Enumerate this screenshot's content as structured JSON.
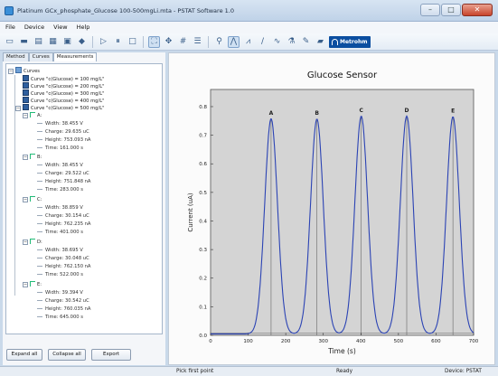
{
  "window": {
    "title": "Platinum GCx_phosphate_Glucose 100-500mgLi.mta - PSTAT Software 1.0"
  },
  "menu": [
    "File",
    "Device",
    "View",
    "Help"
  ],
  "toolbar": {
    "brand_label": "Metrohm"
  },
  "tabs": [
    "Method",
    "Curves",
    "Measurements"
  ],
  "tree": {
    "root": "Curves",
    "curves": [
      "Curve \"c(Glucose) = 100 mg/L\"",
      "Curve \"c(Glucose) = 200 mg/L\"",
      "Curve \"c(Glucose) = 300 mg/L\"",
      "Curve \"c(Glucose) = 400 mg/L\"",
      "Curve \"c(Glucose) = 500 mg/L\""
    ],
    "peaks": [
      {
        "name": "A:",
        "width": "Width: 38.455 V",
        "charge": "Charge: 29.635 uC",
        "height": "Height: 753.093 nA",
        "time": "Time: 161.000 s"
      },
      {
        "name": "B:",
        "width": "Width: 38.455 V",
        "charge": "Charge: 29.522 uC",
        "height": "Height: 751.848 nA",
        "time": "Time: 283.000 s"
      },
      {
        "name": "C:",
        "width": "Width: 38.859 V",
        "charge": "Charge: 30.154 uC",
        "height": "Height: 762.235 nA",
        "time": "Time: 401.000 s"
      },
      {
        "name": "D:",
        "width": "Width: 38.695 V",
        "charge": "Charge: 30.048 uC",
        "height": "Height: 762.150 nA",
        "time": "Time: 522.000 s"
      },
      {
        "name": "E:",
        "width": "Width: 39.394 V",
        "charge": "Charge: 30.542 uC",
        "height": "Height: 760.035 nA",
        "time": "Time: 645.000 s"
      }
    ]
  },
  "buttons": {
    "expand": "Expand all",
    "collapse": "Collapse all",
    "export": "Export"
  },
  "status": {
    "left": "Pick first point",
    "mid": "Ready",
    "right": "Device: PSTAT"
  },
  "chart_data": {
    "type": "line",
    "title": "Glucose Sensor",
    "xlabel": "Time (s)",
    "ylabel": "Current (uA)",
    "xlim": [
      0,
      700
    ],
    "ylim": [
      0,
      0.86
    ],
    "xticks": [
      0,
      100,
      200,
      300,
      400,
      500,
      600,
      700
    ],
    "yticks": [
      0.0,
      0.1,
      0.2,
      0.3,
      0.4,
      0.5,
      0.6,
      0.7,
      0.8
    ],
    "ytick_labels": [
      "0.0",
      "0.1",
      "0.2",
      "0.3",
      "0.4",
      "0.5",
      "0.6",
      "0.7",
      "0.8"
    ],
    "background": "#d4d4d4",
    "line_color": "#2b43b4",
    "peaks": [
      {
        "label": "A",
        "time": 161,
        "height": 0.753
      },
      {
        "label": "B",
        "time": 283,
        "height": 0.752
      },
      {
        "label": "C",
        "time": 401,
        "height": 0.762
      },
      {
        "label": "D",
        "time": 522,
        "height": 0.762
      },
      {
        "label": "E",
        "time": 645,
        "height": 0.76
      }
    ]
  }
}
